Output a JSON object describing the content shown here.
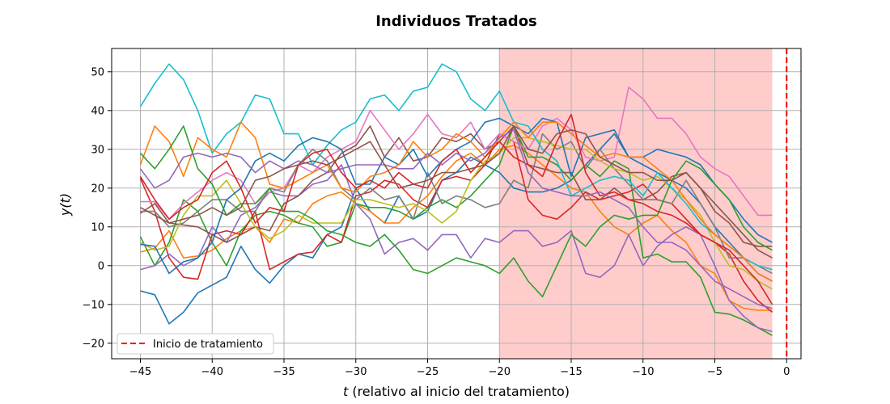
{
  "chart_data": {
    "type": "line",
    "title": "Individuos Tratados",
    "xlabel_var": "t",
    "xlabel_rest": " (relativo al inicio del tratamiento)",
    "ylabel": "y(t)",
    "xlim": [
      -47,
      1
    ],
    "ylim": [
      -24,
      56
    ],
    "xticks": [
      -45,
      -40,
      -35,
      -30,
      -25,
      -20,
      -15,
      -10,
      -5,
      0
    ],
    "yticks": [
      -20,
      -10,
      0,
      10,
      20,
      30,
      40,
      50
    ],
    "grid": true,
    "legend_position": "lower-left",
    "legend_label": "Inicio de tratamiento",
    "treatment_start": 0,
    "shaded_region": {
      "from": -20,
      "to": -1,
      "color": "#ffcccc"
    },
    "x": [
      -45,
      -44,
      -43,
      -42,
      -41,
      -40,
      -39,
      -38,
      -37,
      -36,
      -35,
      -34,
      -33,
      -32,
      -31,
      -30,
      -29,
      -28,
      -27,
      -26,
      -25,
      -24,
      -23,
      -22,
      -21,
      -20,
      -19,
      -18,
      -17,
      -16,
      -15,
      -14,
      -13,
      -12,
      -11,
      -10,
      -9,
      -8,
      -7,
      -6,
      -5,
      -4,
      -3,
      -2,
      -1
    ],
    "series": [
      {
        "color": "#1f77b4",
        "values": [
          -6.5,
          -7.5,
          -15,
          -12,
          -7,
          -5,
          -3,
          5,
          -1,
          -4.5,
          0,
          3,
          2,
          8,
          10,
          20,
          14,
          11,
          18,
          12,
          14,
          22,
          24,
          28,
          26,
          24,
          20,
          19,
          19,
          20,
          22,
          26,
          30,
          34,
          28,
          26,
          24,
          22,
          20,
          16,
          10,
          6,
          2,
          -2,
          -4
        ]
      },
      {
        "color": "#ff7f0e",
        "values": [
          3.5,
          4.5,
          9,
          2,
          2.5,
          4,
          7,
          9,
          10,
          6,
          12,
          11,
          16,
          18,
          19,
          16,
          14,
          11,
          11,
          15,
          18,
          23,
          27,
          29,
          26,
          30,
          31,
          29,
          26,
          23,
          20,
          19,
          14,
          10,
          8,
          11,
          13,
          9,
          6,
          0,
          -2,
          -9,
          -11,
          -11.5,
          -11.5
        ]
      },
      {
        "color": "#2ca02c",
        "values": [
          7.5,
          0,
          6,
          17,
          14,
          6,
          0,
          9,
          13,
          14,
          13,
          11,
          10,
          5,
          6,
          16,
          15,
          15,
          14,
          12,
          15,
          17,
          15,
          18,
          22,
          26,
          36,
          28,
          28,
          26,
          22,
          26,
          23,
          27,
          25,
          2,
          3,
          1,
          1,
          -3,
          -12,
          -12.5,
          -14,
          -16,
          -18
        ]
      },
      {
        "color": "#d62728",
        "values": [
          22.5,
          14,
          2,
          -3,
          -3.5,
          8,
          9,
          8,
          14,
          -1,
          1,
          3,
          3.5,
          8,
          6,
          18,
          19,
          22,
          21,
          17,
          15,
          22,
          23,
          22,
          26,
          34,
          32,
          17,
          13,
          12,
          15,
          19,
          17,
          18,
          19,
          21,
          17,
          16,
          12,
          8,
          6,
          3,
          -4,
          -9,
          -12
        ]
      },
      {
        "color": "#9467bd",
        "values": [
          -1,
          0,
          3,
          0,
          2,
          10,
          6,
          13,
          15,
          19,
          18,
          18,
          21,
          22,
          26,
          16,
          12,
          3,
          6,
          7,
          4,
          8,
          8,
          2,
          7,
          6,
          9,
          9,
          5,
          6,
          9,
          -2,
          -3,
          0,
          8,
          0,
          5,
          8,
          10,
          8,
          0,
          -9,
          -13,
          -16,
          -17
        ]
      },
      {
        "color": "#8c564b",
        "values": [
          13.5,
          16,
          11,
          10.5,
          10,
          8,
          6,
          8,
          10,
          9,
          16,
          18,
          22,
          24,
          29,
          31,
          36,
          28,
          33,
          27,
          28,
          33,
          32,
          34,
          30,
          32,
          36,
          26,
          25,
          24,
          24,
          17,
          17,
          20,
          17,
          17,
          19,
          23,
          24,
          20,
          14,
          11,
          6,
          5,
          5
        ]
      },
      {
        "color": "#e377c2",
        "values": [
          16.5,
          16.5,
          12,
          16,
          19,
          22,
          24,
          22,
          16,
          19,
          20,
          26,
          24,
          28,
          30,
          32,
          40,
          35,
          30,
          34,
          39,
          34,
          33,
          37,
          30,
          34,
          32,
          30,
          36,
          38,
          35,
          28,
          27,
          28,
          46,
          43,
          38,
          38,
          34,
          28,
          25,
          23,
          18,
          13,
          13
        ]
      },
      {
        "color": "#7f7f7f",
        "values": [
          14,
          14,
          10,
          11,
          14,
          17,
          17,
          14,
          14,
          20,
          19,
          26,
          30,
          27,
          20,
          17,
          20,
          17,
          18,
          12,
          24,
          16,
          18,
          17,
          15,
          16,
          22,
          20,
          34,
          30,
          32,
          25,
          30,
          25,
          21,
          17,
          17,
          16,
          22,
          16,
          10,
          2,
          2,
          0,
          -2
        ]
      },
      {
        "color": "#bcbd22",
        "values": [
          6,
          4,
          5,
          13,
          18,
          18,
          22,
          16,
          10,
          7,
          9,
          13,
          11,
          11,
          11,
          17,
          17,
          16,
          15,
          16,
          14,
          11,
          14,
          22,
          27,
          29,
          33,
          33,
          32,
          31,
          30,
          30,
          27,
          25,
          24,
          22,
          23,
          20,
          17,
          13,
          6,
          0,
          -1,
          -4,
          -6
        ]
      },
      {
        "color": "#17becf",
        "values": [
          41,
          47,
          52,
          48,
          40,
          29,
          34,
          37,
          44,
          43,
          34,
          34,
          26,
          31,
          35,
          37,
          43,
          44,
          40,
          45,
          46,
          52,
          50,
          43,
          40,
          45,
          37,
          36,
          30,
          27,
          18,
          20,
          22,
          23,
          22,
          18,
          24,
          20,
          16,
          11,
          8,
          5,
          2,
          0,
          -1
        ]
      },
      {
        "color": "#1f77b4",
        "values": [
          5.5,
          5,
          -2,
          1,
          2,
          6,
          17,
          20,
          27,
          29,
          27,
          31,
          33,
          32,
          30,
          21,
          21,
          28,
          26,
          30,
          23,
          27,
          30,
          32,
          37,
          38,
          36,
          34,
          38,
          37,
          23,
          33,
          34,
          35,
          28,
          28,
          30,
          29,
          28,
          26,
          21,
          17,
          12,
          8,
          6
        ]
      },
      {
        "color": "#ff7f0e",
        "values": [
          26,
          36,
          32,
          23,
          33,
          30,
          28,
          37,
          33,
          21,
          20,
          22,
          24,
          26,
          20,
          19,
          23,
          24,
          26,
          32,
          28,
          30,
          34,
          32,
          28,
          33,
          37,
          33,
          37,
          37,
          34,
          31,
          28,
          29,
          28,
          28,
          25,
          22,
          17,
          12,
          8,
          5,
          2,
          -2,
          -4
        ]
      },
      {
        "color": "#2ca02c",
        "values": [
          29,
          25,
          30,
          36,
          25,
          21,
          13,
          16,
          16,
          20,
          14,
          14,
          12,
          9,
          8,
          6,
          5,
          8,
          4,
          -1,
          -2,
          0,
          2,
          1,
          0,
          -2,
          2,
          -4,
          -8,
          0,
          8,
          5,
          10,
          13,
          12,
          13,
          13,
          22,
          27,
          25,
          21,
          17,
          10,
          6,
          4
        ]
      },
      {
        "color": "#d62728",
        "values": [
          23,
          17,
          12,
          15,
          17,
          24,
          27,
          20,
          11,
          15,
          14,
          26,
          29,
          30,
          24,
          20,
          22,
          20,
          24,
          21,
          20,
          27,
          30,
          24,
          28,
          32,
          28,
          26,
          23,
          32,
          39,
          24,
          18,
          19,
          17,
          16,
          14,
          13,
          11,
          8,
          6,
          4,
          0,
          -4,
          -10
        ]
      },
      {
        "color": "#9467bd",
        "values": [
          25,
          20,
          22,
          28,
          29,
          28,
          29,
          28,
          24,
          27,
          25,
          27,
          26,
          24,
          25,
          26,
          26,
          26,
          25,
          25,
          29,
          26,
          29,
          27,
          29,
          33,
          35,
          24,
          20,
          19,
          18,
          18,
          19,
          17,
          15,
          10,
          6,
          6,
          4,
          0,
          -4,
          -6,
          -8,
          -10,
          -11
        ]
      },
      {
        "color": "#8c564b",
        "values": [
          15,
          13,
          11,
          12,
          13,
          15,
          13,
          15,
          22,
          23,
          25,
          26,
          27,
          26,
          28,
          30,
          32,
          26,
          20,
          21,
          22,
          24,
          24,
          25,
          26,
          29,
          36,
          30,
          29,
          34,
          35,
          34,
          28,
          26,
          24,
          24,
          22,
          22,
          24,
          20,
          16,
          12,
          8,
          4,
          2
        ]
      }
    ]
  }
}
